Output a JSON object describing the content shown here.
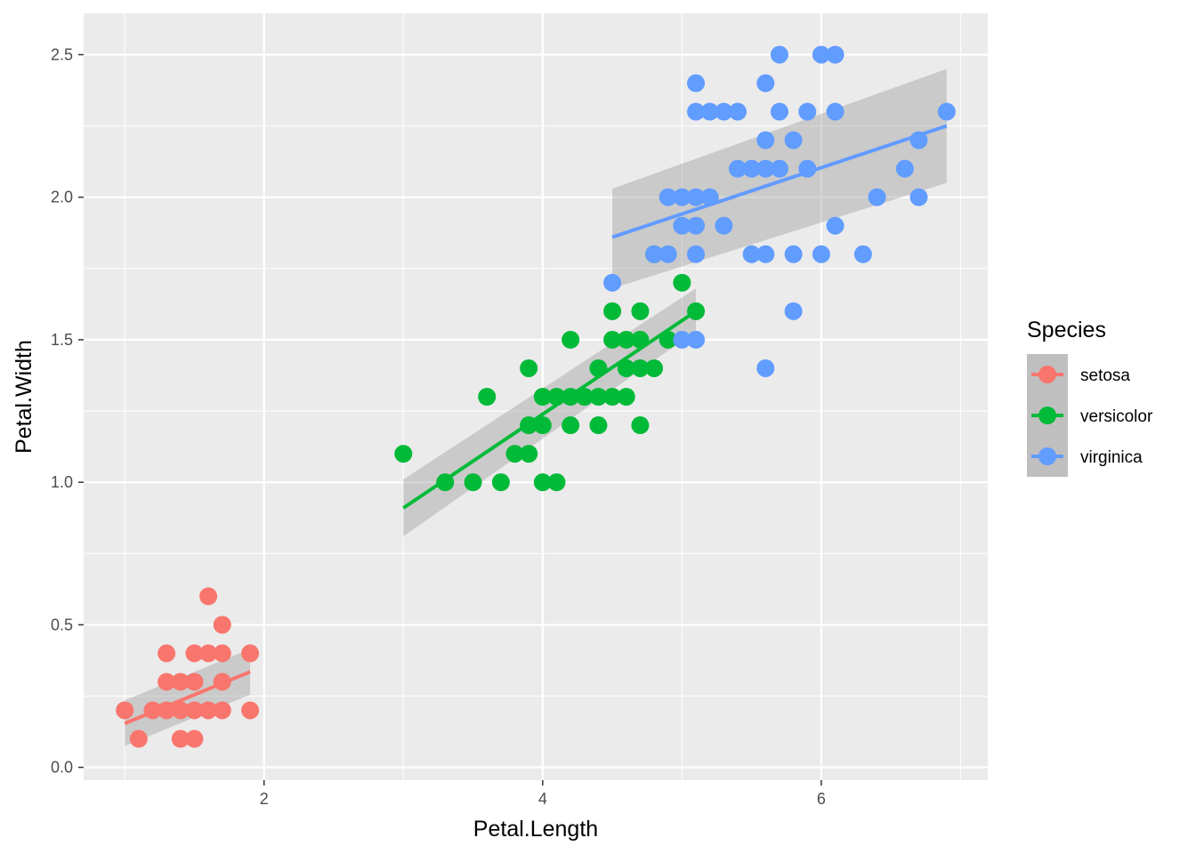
{
  "chart_data": {
    "type": "scatter",
    "xlabel": "Petal.Length",
    "ylabel": "Petal.Width",
    "xlim": [
      0.705,
      7.195
    ],
    "ylim": [
      -0.045,
      2.645
    ],
    "x_ticks_major": [
      2,
      4,
      6
    ],
    "x_ticks_minor": [
      1,
      3,
      5,
      7
    ],
    "y_ticks_major": [
      0.0,
      0.5,
      1.0,
      1.5,
      2.0,
      2.5
    ],
    "y_tick_labels": [
      "0.0",
      "0.5",
      "1.0",
      "1.5",
      "2.0",
      "2.5"
    ],
    "y_ticks_minor": [
      0.25,
      0.75,
      1.25,
      1.75,
      2.25
    ],
    "x_tick_labels": [
      "2",
      "4",
      "6"
    ],
    "grid": true,
    "legend": {
      "title": "Species",
      "placement": "right"
    },
    "series": [
      {
        "name": "setosa",
        "color": "#F8766D",
        "points": [
          [
            1.0,
            0.2
          ],
          [
            1.1,
            0.1
          ],
          [
            1.2,
            0.2
          ],
          [
            1.3,
            0.4
          ],
          [
            1.3,
            0.3
          ],
          [
            1.3,
            0.2
          ],
          [
            1.4,
            0.3
          ],
          [
            1.4,
            0.2
          ],
          [
            1.4,
            0.1
          ],
          [
            1.5,
            0.4
          ],
          [
            1.5,
            0.3
          ],
          [
            1.5,
            0.2
          ],
          [
            1.5,
            0.1
          ],
          [
            1.6,
            0.6
          ],
          [
            1.6,
            0.4
          ],
          [
            1.6,
            0.2
          ],
          [
            1.7,
            0.5
          ],
          [
            1.7,
            0.4
          ],
          [
            1.7,
            0.3
          ],
          [
            1.7,
            0.2
          ],
          [
            1.9,
            0.4
          ],
          [
            1.9,
            0.2
          ]
        ],
        "fit": {
          "x_range": [
            1.0,
            1.9
          ],
          "y_range": [
            0.154,
            0.335
          ],
          "band_lower": [
            0.075,
            0.255
          ],
          "band_upper": [
            0.235,
            0.415
          ]
        }
      },
      {
        "name": "versicolor",
        "color": "#00BA38",
        "points": [
          [
            3.0,
            1.1
          ],
          [
            3.3,
            1.0
          ],
          [
            3.5,
            1.0
          ],
          [
            3.6,
            1.3
          ],
          [
            3.7,
            1.0
          ],
          [
            3.8,
            1.1
          ],
          [
            3.9,
            1.4
          ],
          [
            3.9,
            1.2
          ],
          [
            3.9,
            1.1
          ],
          [
            4.0,
            1.3
          ],
          [
            4.0,
            1.2
          ],
          [
            4.0,
            1.0
          ],
          [
            4.1,
            1.3
          ],
          [
            4.1,
            1.0
          ],
          [
            4.2,
            1.5
          ],
          [
            4.2,
            1.3
          ],
          [
            4.2,
            1.2
          ],
          [
            4.3,
            1.3
          ],
          [
            4.4,
            1.4
          ],
          [
            4.4,
            1.3
          ],
          [
            4.4,
            1.2
          ],
          [
            4.5,
            1.6
          ],
          [
            4.5,
            1.5
          ],
          [
            4.5,
            1.3
          ],
          [
            4.6,
            1.5
          ],
          [
            4.6,
            1.4
          ],
          [
            4.6,
            1.3
          ],
          [
            4.7,
            1.6
          ],
          [
            4.7,
            1.5
          ],
          [
            4.7,
            1.4
          ],
          [
            4.7,
            1.2
          ],
          [
            4.8,
            1.4
          ],
          [
            4.8,
            1.8
          ],
          [
            4.9,
            1.5
          ],
          [
            5.0,
            1.7
          ],
          [
            5.1,
            1.6
          ]
        ],
        "fit": {
          "x_range": [
            3.0,
            5.1
          ],
          "y_range": [
            0.91,
            1.6
          ],
          "band_lower": [
            0.81,
            1.53
          ],
          "band_upper": [
            1.01,
            1.68
          ]
        }
      },
      {
        "name": "virginica",
        "color": "#619CFF",
        "points": [
          [
            4.5,
            1.7
          ],
          [
            4.8,
            1.8
          ],
          [
            4.9,
            2.0
          ],
          [
            4.9,
            1.8
          ],
          [
            5.0,
            2.0
          ],
          [
            5.0,
            1.9
          ],
          [
            5.0,
            1.5
          ],
          [
            5.1,
            2.4
          ],
          [
            5.1,
            2.3
          ],
          [
            5.1,
            2.0
          ],
          [
            5.1,
            1.9
          ],
          [
            5.1,
            1.8
          ],
          [
            5.1,
            1.5
          ],
          [
            5.2,
            2.3
          ],
          [
            5.2,
            2.0
          ],
          [
            5.3,
            2.3
          ],
          [
            5.3,
            1.9
          ],
          [
            5.4,
            2.3
          ],
          [
            5.4,
            2.1
          ],
          [
            5.5,
            2.1
          ],
          [
            5.5,
            1.8
          ],
          [
            5.6,
            2.4
          ],
          [
            5.6,
            2.2
          ],
          [
            5.6,
            2.1
          ],
          [
            5.6,
            1.8
          ],
          [
            5.6,
            1.4
          ],
          [
            5.7,
            2.5
          ],
          [
            5.7,
            2.3
          ],
          [
            5.7,
            2.1
          ],
          [
            5.8,
            2.2
          ],
          [
            5.8,
            1.8
          ],
          [
            5.8,
            1.6
          ],
          [
            5.9,
            2.3
          ],
          [
            5.9,
            2.1
          ],
          [
            6.0,
            2.5
          ],
          [
            6.0,
            1.8
          ],
          [
            6.1,
            2.5
          ],
          [
            6.1,
            2.3
          ],
          [
            6.1,
            1.9
          ],
          [
            6.3,
            1.8
          ],
          [
            6.4,
            2.0
          ],
          [
            6.6,
            2.1
          ],
          [
            6.7,
            2.2
          ],
          [
            6.7,
            2.0
          ],
          [
            6.9,
            2.3
          ]
        ],
        "fit": {
          "x_range": [
            4.5,
            6.9
          ],
          "y_range": [
            1.86,
            2.25
          ],
          "band_lower": [
            1.68,
            2.05
          ],
          "band_upper": [
            2.03,
            2.45
          ]
        }
      }
    ]
  }
}
